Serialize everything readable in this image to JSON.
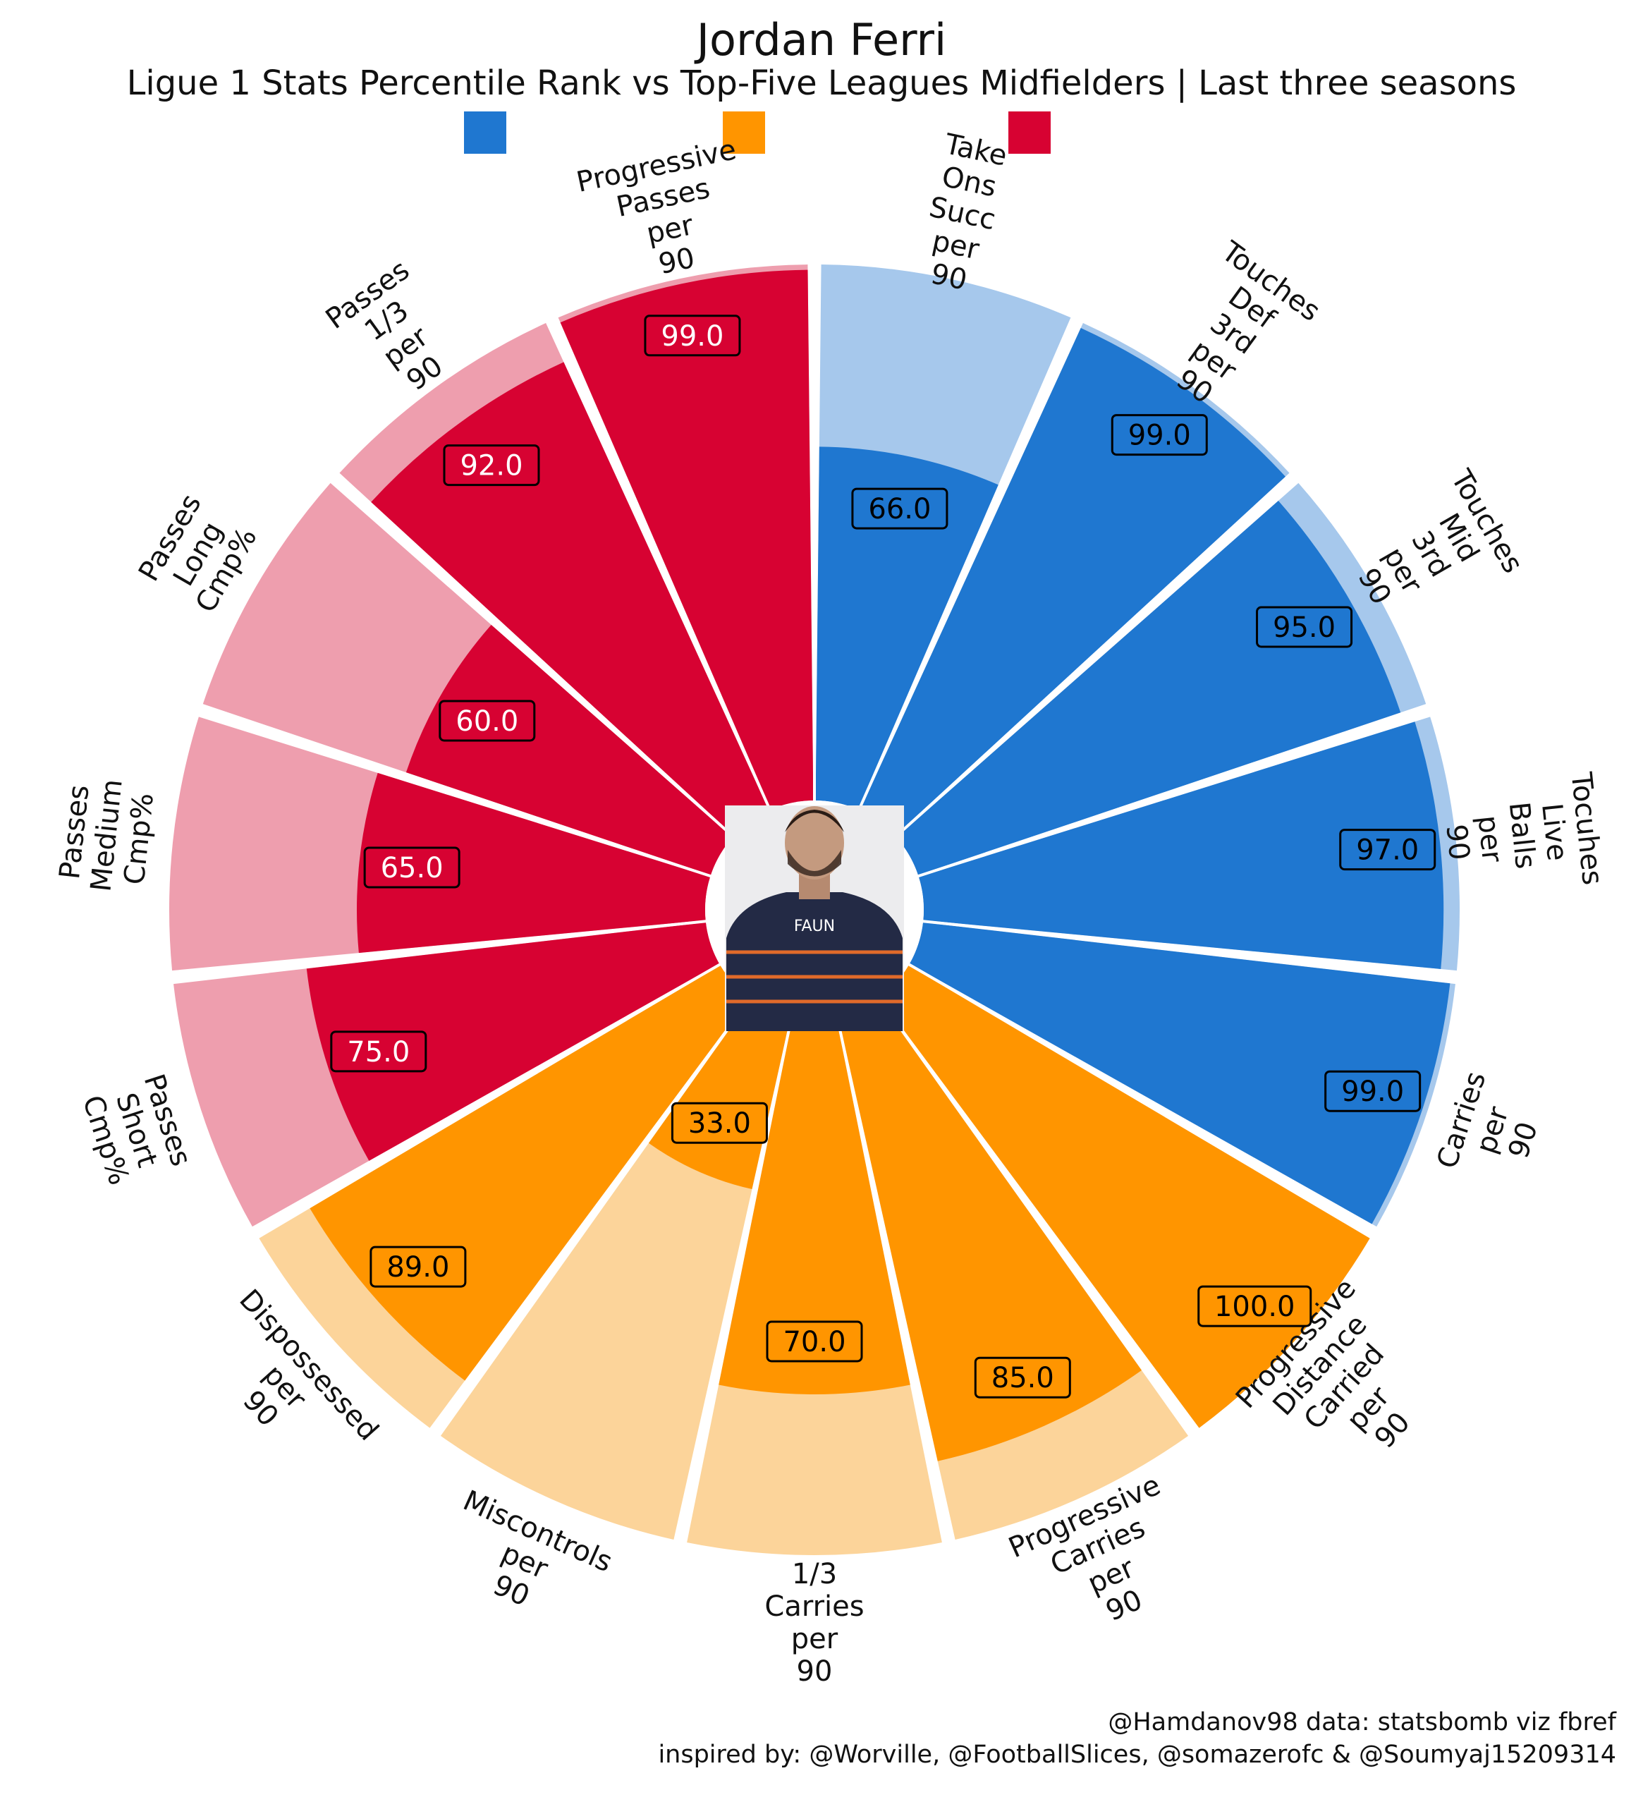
{
  "title": "Jordan Ferri",
  "subtitle": "Ligue 1 Stats Percentile Rank vs Top-Five Leagues Midfielders | Last three seasons",
  "credits": {
    "line1": "@Hamdanov98 data: statsbomb viz fbref",
    "line2": "inspired by: @Worville, @FootballSlices, @somazerofc & @Soumyaj15209314"
  },
  "legend": [
    {
      "color": "#1f77d0"
    },
    {
      "color": "#ff9500"
    },
    {
      "color": "#d70232"
    }
  ],
  "center_image": "player-photo",
  "chart_data": {
    "type": "pizza",
    "ylim": [
      0,
      100
    ],
    "start_angle_deg": 0,
    "direction": "clockwise",
    "series": [
      {
        "group": "blue",
        "color": "#1f77d0",
        "background": "#a6c8ec",
        "categories": [
          "Take Ons Succ per 90",
          "Touches Def 3rd per 90",
          "Touches Mid 3rd per 90",
          "Tocuhes Live Balls per 90",
          "Carries per 90"
        ],
        "values": [
          66.0,
          99.0,
          95.0,
          97.0,
          99.0
        ],
        "value_label_color": "#000000"
      },
      {
        "group": "orange",
        "color": "#ff9500",
        "background": "#fcd49a",
        "categories": [
          "Progressive Distance Carried per 90",
          "Progressive Carries per 90",
          "1/3 Carries per 90",
          "Miscontrols per 90",
          "Dispossessed per 90"
        ],
        "values": [
          100.0,
          85.0,
          70.0,
          33.0,
          89.0
        ],
        "value_label_color": "#000000"
      },
      {
        "group": "red",
        "color": "#d70232",
        "background": "#ee9eae",
        "categories": [
          "Passes Short Cmp%",
          "Passes Medium Cmp%",
          "Passes Long Cmp%",
          "Passes 1/3 per 90",
          "Progressive Passes per 90"
        ],
        "values": [
          75.0,
          65.0,
          60.0,
          92.0,
          99.0
        ],
        "value_label_color": "#ffffff"
      }
    ]
  }
}
